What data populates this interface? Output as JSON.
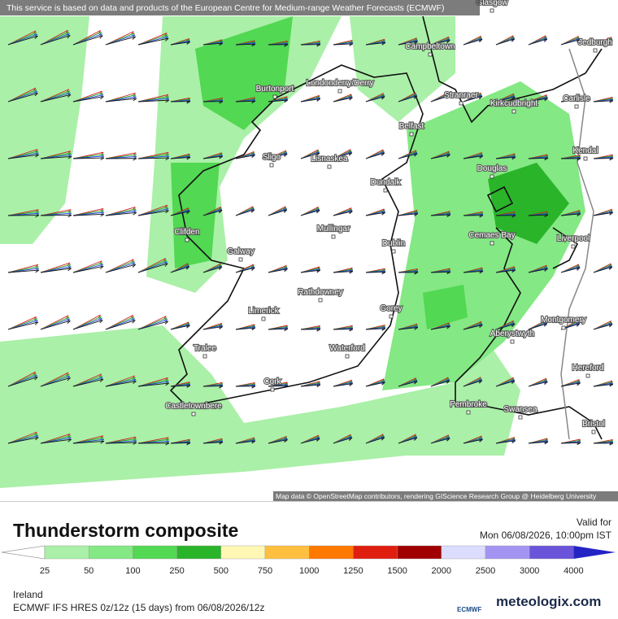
{
  "banner": "This service is based on data and products of the European Centre for Medium-range Weather Forecasts (ECMWF)",
  "attribution": "Map data © OpenStreetMap contributors, rendering GIScience Research Group @ Heidelberg University",
  "places": [
    "Glasgow",
    "Campbeltown",
    "Jedburgh",
    "Burtonport",
    "Londonderry/Derry",
    "Stranraer",
    "Kirkcudbright",
    "Carlisle",
    "Belfast",
    "Sligo",
    "Lisnaskea",
    "Kendal",
    "Douglas",
    "Dundalk",
    "Clifden",
    "Mullingar",
    "Cemaes Bay",
    "Liverpool",
    "Dublin",
    "Galway",
    "Rathdowney",
    "Limerick",
    "Gorey",
    "Montgomery",
    "Aberystwyth",
    "Tralee",
    "Waterford",
    "Hereford",
    "Cork",
    "Castletownbere",
    "Pembroke",
    "Swansea",
    "Bristol"
  ],
  "title": "Thunderstorm composite",
  "valid_label": "Valid for",
  "valid_time": "Mon 06/08/2026, 10:00pm IST",
  "scale": {
    "labels": [
      "25",
      "50",
      "100",
      "250",
      "500",
      "750",
      "1000",
      "1250",
      "1500",
      "2000",
      "2500",
      "3000",
      "4000"
    ],
    "colors": [
      "#ffffff",
      "#aaf0a8",
      "#84e884",
      "#52d852",
      "#2ab42a",
      "#fff8b4",
      "#ffc040",
      "#ff7800",
      "#e01e10",
      "#a00000",
      "#dcdcff",
      "#a494f2",
      "#6a54da",
      "#2424c4"
    ]
  },
  "region": "Ireland",
  "model": "ECMWF IFS HRES 0z/12z (15 days) from 06/08/2026/12z",
  "ecmwf_logo": "ECMWF",
  "brand": "meteologix.com"
}
